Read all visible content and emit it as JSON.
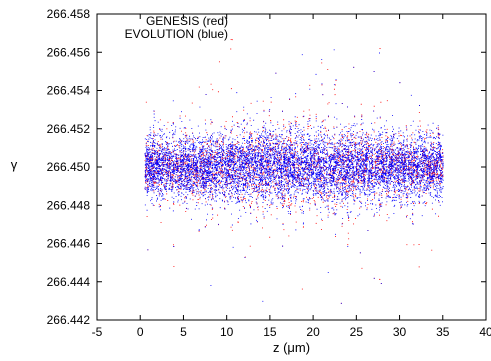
{
  "chart_data": {
    "type": "scatter",
    "title": "",
    "xlabel": "z (μm)",
    "ylabel": "γ",
    "xlim": [
      -5,
      40
    ],
    "ylim": [
      266.442,
      266.458
    ],
    "xticks": [
      -5,
      0,
      5,
      10,
      15,
      20,
      25,
      30,
      35,
      40
    ],
    "yticks": [
      266.442,
      266.444,
      266.446,
      266.448,
      266.45,
      266.452,
      266.454,
      266.456,
      266.458
    ],
    "grid": false,
    "legend_position": "top-left",
    "legend_entries": [
      "GENESIS (red)",
      "EVOLUTION (blue)"
    ],
    "series": [
      {
        "name": "GENESIS (red)",
        "color": "#ff0000",
        "x_range": [
          0.5,
          35
        ],
        "y_center": 266.45,
        "y_spread_typical": 0.0025,
        "y_spread_max": 0.0075,
        "bunching_period": 0.75
      },
      {
        "name": "EVOLUTION (blue)",
        "color": "#0000ff",
        "x_range": [
          0.5,
          35
        ],
        "y_center": 266.45,
        "y_spread_typical": 0.0025,
        "y_spread_max": 0.0075,
        "bunching_period": 0.75
      }
    ]
  }
}
